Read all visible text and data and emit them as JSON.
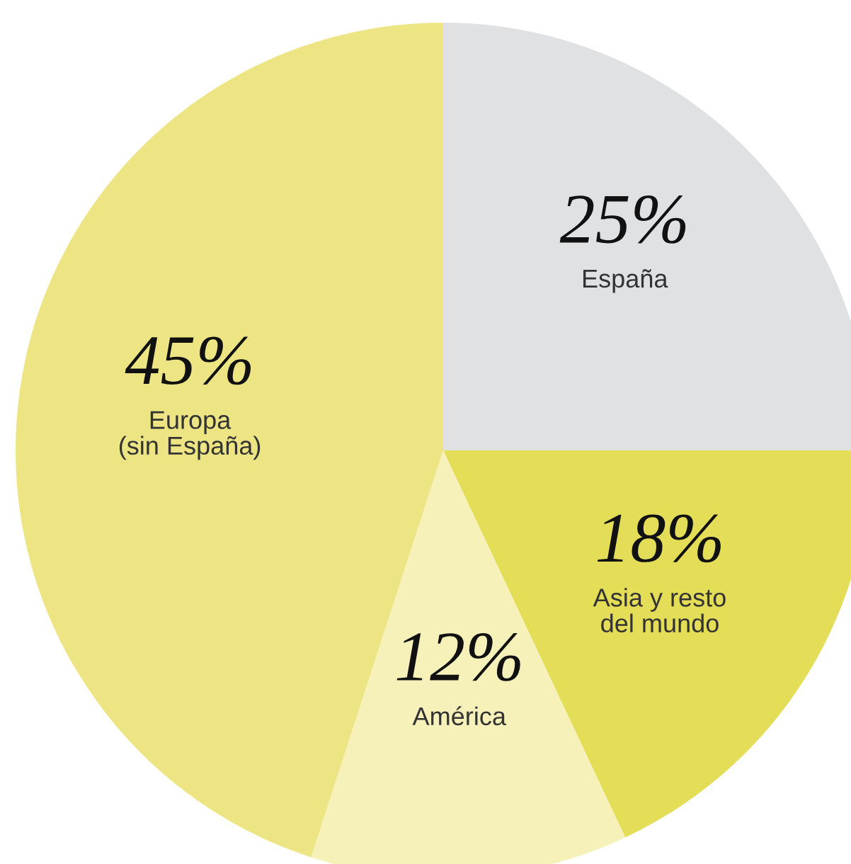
{
  "chart_data": {
    "type": "pie",
    "categories": [
      "España",
      "Asia y resto\ndel mundo",
      "América",
      "Europa\n(sin España)"
    ],
    "values": [
      25,
      18,
      12,
      45
    ],
    "value_labels": [
      "25%",
      "18%",
      "12%",
      "45%"
    ],
    "colors": [
      "#e0e1e3",
      "#e4dd58",
      "#f5f1b9",
      "#ede584"
    ]
  }
}
